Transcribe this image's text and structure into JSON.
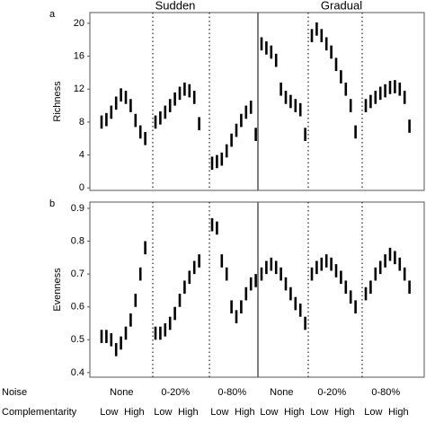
{
  "header": {
    "columns": [
      "Sudden",
      "Gradual"
    ]
  },
  "footer": {
    "rows": [
      {
        "label": "Noise",
        "groups": [
          "None",
          "0-20%",
          "0-80%",
          "None",
          "0-20%",
          "0-80%"
        ]
      },
      {
        "label": "Complementarity",
        "groups": [
          "Low",
          "High",
          "Low",
          "High",
          "Low",
          "High",
          "Low",
          "High",
          "Low",
          "High",
          "Low",
          "High"
        ]
      }
    ]
  },
  "chart_data": [
    {
      "type": "errorbar",
      "panel": "a",
      "ylabel": "Richness",
      "ylim": [
        -0.3,
        21.3
      ],
      "yticks": [
        0,
        4,
        8,
        12,
        16,
        20
      ],
      "color": "#000000",
      "series": [
        {
          "values": [
            8,
            8.3,
            9.2,
            10.3,
            11.3,
            11,
            10,
            8.2,
            6.8,
            6
          ],
          "error": 0.8
        },
        {
          "values": [
            8,
            8.5,
            9.2,
            10,
            10.8,
            11.5,
            12,
            11.8,
            11,
            7.8
          ],
          "error": 0.8
        },
        {
          "values": [
            3,
            3.2,
            3.5,
            4.5,
            5.8,
            7,
            8.2,
            9.2,
            9.8,
            6.5
          ],
          "error": 0.8
        },
        {
          "values": [
            17.5,
            17,
            16.5,
            15.5,
            12,
            11,
            10.5,
            10,
            9.5,
            6.5
          ],
          "error": 0.8
        },
        {
          "values": [
            18.5,
            19.3,
            18.5,
            17.5,
            16.5,
            15,
            13.5,
            12,
            10,
            6.8
          ],
          "error": 0.8
        },
        {
          "values": [
            10,
            10.5,
            11,
            11.5,
            11.8,
            12.2,
            12.3,
            12,
            11,
            7.5
          ],
          "error": 0.8
        }
      ]
    },
    {
      "type": "errorbar",
      "panel": "b",
      "ylabel": "Evenness",
      "ylim": [
        0.386,
        0.919
      ],
      "yticks": [
        0.4,
        0.5,
        0.6,
        0.7,
        0.8,
        0.9
      ],
      "color": "#000000",
      "series": [
        {
          "values": [
            0.51,
            0.51,
            0.5,
            0.47,
            0.49,
            0.52,
            0.56,
            0.62,
            0.7,
            0.78
          ],
          "error": 0.02
        },
        {
          "values": [
            0.52,
            0.52,
            0.53,
            0.55,
            0.58,
            0.62,
            0.66,
            0.69,
            0.72,
            0.74
          ],
          "error": 0.02
        },
        {
          "values": [
            0.85,
            0.84,
            0.74,
            0.7,
            0.6,
            0.57,
            0.6,
            0.64,
            0.67,
            0.68
          ],
          "error": 0.02
        },
        {
          "values": [
            0.7,
            0.72,
            0.73,
            0.72,
            0.7,
            0.67,
            0.64,
            0.61,
            0.59,
            0.55
          ],
          "error": 0.02
        },
        {
          "values": [
            0.7,
            0.72,
            0.73,
            0.74,
            0.73,
            0.71,
            0.69,
            0.66,
            0.63,
            0.6
          ],
          "error": 0.02
        },
        {
          "values": [
            0.64,
            0.66,
            0.7,
            0.72,
            0.74,
            0.76,
            0.75,
            0.73,
            0.7,
            0.66
          ],
          "error": 0.02
        }
      ]
    }
  ]
}
